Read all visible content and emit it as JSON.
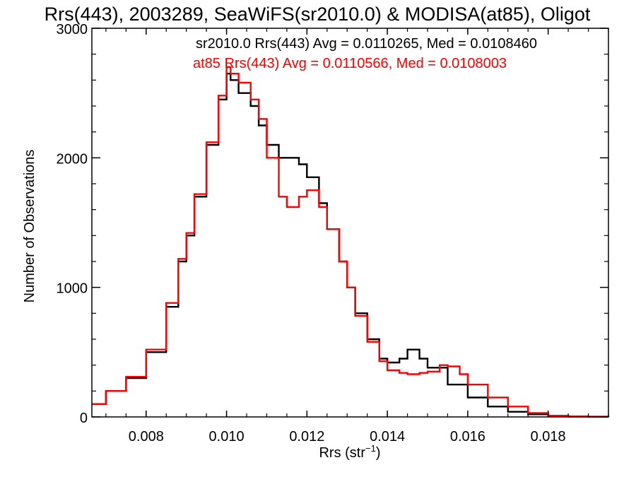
{
  "chart_data": {
    "type": "line",
    "title": "Rrs(443), 2003289, SeaWiFS(sr2010.0) & MODISA(at85), Oligot",
    "xlabel_main": "Rrs (str",
    "xlabel_sup": "−1",
    "xlabel_close": ")",
    "ylabel": "Number of Observations",
    "xlim": [
      0.00665,
      0.0195
    ],
    "ylim": [
      0,
      3000
    ],
    "x_ticks": [
      0.008,
      0.01,
      0.012,
      0.014,
      0.016,
      0.018
    ],
    "x_tick_labels": [
      "0.008",
      "0.010",
      "0.012",
      "0.014",
      "0.016",
      "0.018"
    ],
    "y_ticks": [
      0,
      1000,
      2000,
      3000
    ],
    "y_tick_labels": [
      "0",
      "1000",
      "2000",
      "3000"
    ],
    "legend": [
      "sr2010.0 Rrs(443) Avg = 0.0110265, Med = 0.0108460",
      "at85 Rrs(443) Avg = 0.0110566, Med = 0.0108003"
    ],
    "series": [
      {
        "color": "#000000",
        "x": [
          0.00665,
          0.007,
          0.0075,
          0.008,
          0.0085,
          0.0088,
          0.009,
          0.0092,
          0.0095,
          0.0098,
          0.01,
          0.0101,
          0.0103,
          0.0106,
          0.0108,
          0.011,
          0.0113,
          0.0115,
          0.0118,
          0.012,
          0.0123,
          0.0125,
          0.0128,
          0.013,
          0.0132,
          0.0135,
          0.0138,
          0.014,
          0.0143,
          0.0145,
          0.0148,
          0.015,
          0.0155,
          0.016,
          0.0165,
          0.017,
          0.0175,
          0.018,
          0.0185,
          0.019,
          0.0195
        ],
        "y": [
          100,
          200,
          300,
          500,
          850,
          1200,
          1400,
          1700,
          2100,
          2450,
          2650,
          2600,
          2500,
          2400,
          2250,
          2100,
          2000,
          2000,
          1950,
          1850,
          1650,
          1450,
          1200,
          1000,
          800,
          600,
          450,
          420,
          450,
          520,
          450,
          380,
          250,
          150,
          80,
          40,
          20,
          8,
          4,
          2,
          0
        ]
      },
      {
        "color": "#ff0000",
        "x": [
          0.00665,
          0.007,
          0.0075,
          0.008,
          0.0085,
          0.0088,
          0.009,
          0.0092,
          0.0095,
          0.0098,
          0.01,
          0.0101,
          0.0103,
          0.0106,
          0.0108,
          0.011,
          0.0113,
          0.0115,
          0.0118,
          0.012,
          0.0123,
          0.0125,
          0.0128,
          0.013,
          0.0132,
          0.0135,
          0.0138,
          0.014,
          0.0143,
          0.0145,
          0.0148,
          0.015,
          0.0153,
          0.0155,
          0.0158,
          0.016,
          0.0165,
          0.017,
          0.0175,
          0.018,
          0.0185,
          0.019,
          0.0195
        ],
        "y": [
          100,
          200,
          310,
          520,
          880,
          1220,
          1420,
          1720,
          2120,
          2480,
          2700,
          2650,
          2580,
          2450,
          2300,
          2000,
          1700,
          1620,
          1700,
          1750,
          1620,
          1450,
          1200,
          1000,
          780,
          580,
          430,
          360,
          340,
          330,
          340,
          350,
          400,
          390,
          330,
          250,
          150,
          80,
          30,
          10,
          3,
          1,
          0
        ]
      }
    ]
  }
}
